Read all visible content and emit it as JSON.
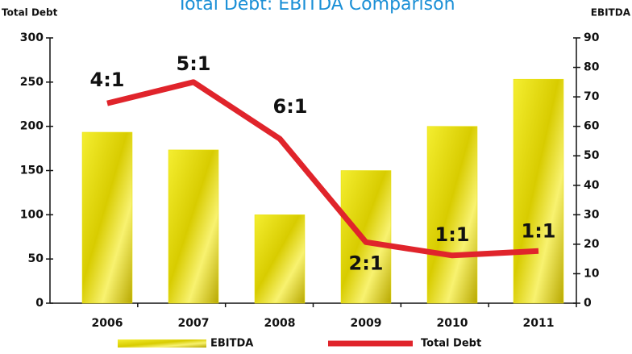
{
  "chart_data": {
    "type": "bar_line",
    "title": "Total Debt: EBITDA Comparison",
    "ylabel": "Total Debt",
    "y2label": "EBITDA",
    "categories": [
      "2006",
      "2007",
      "2008",
      "2009",
      "2010",
      "2011"
    ],
    "series": [
      {
        "name": "EBITDA",
        "type": "bar",
        "axis": "y2",
        "color": "#e8e000",
        "values": [
          58,
          52,
          30,
          45,
          60,
          76
        ]
      },
      {
        "name": "Total Debt",
        "type": "line",
        "color": "#e0242b",
        "values": [
          226,
          250,
          186,
          69,
          54,
          59
        ]
      }
    ],
    "annotations": [
      "4:1",
      "5:1",
      "6:1",
      "2:1",
      "1:1",
      "1:1"
    ],
    "ylim": [
      0,
      300
    ],
    "yticks": [
      0,
      50,
      100,
      150,
      200,
      250,
      300
    ],
    "y2lim": [
      0,
      90
    ],
    "y2ticks": [
      0,
      10,
      20,
      30,
      40,
      50,
      60,
      70,
      80,
      90
    ],
    "grid": false
  }
}
